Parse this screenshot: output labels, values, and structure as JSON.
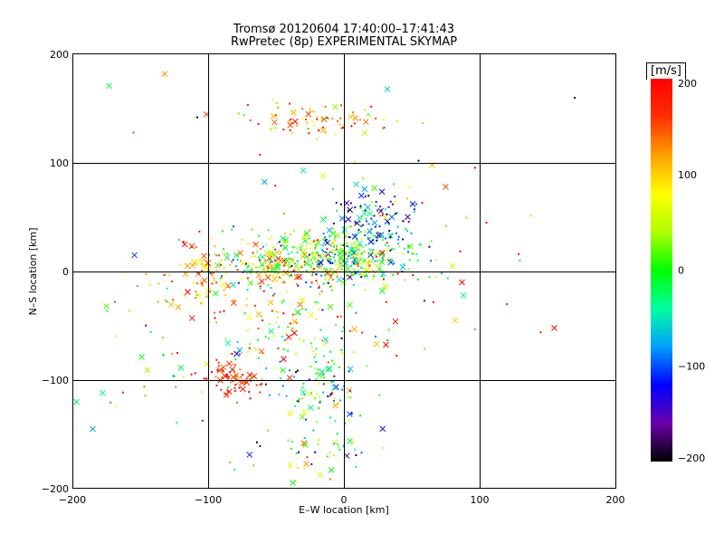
{
  "chart_data": {
    "type": "scatter",
    "title": "Tromsø 20120604 17:40:00–17:41:43",
    "subtitle": "RwPretec (8p) EXPERIMENTAL SKYMAP",
    "xlabel": "E–W location [km]",
    "ylabel": "N–S location [km]",
    "xlim": [
      -200,
      200
    ],
    "ylim": [
      -200,
      200
    ],
    "xticks": [
      -200,
      -100,
      0,
      100,
      200
    ],
    "yticks": [
      -200,
      -100,
      0,
      100,
      200
    ],
    "grid": true,
    "colorbar": {
      "label": "[m/s]",
      "range": [
        -200,
        200
      ],
      "ticks": [
        200,
        100,
        0,
        -100,
        -200
      ],
      "colors": [
        "#000000",
        "#6a00a8",
        "#0000ff",
        "#00a0ff",
        "#00ffa0",
        "#00ff00",
        "#b0ff00",
        "#ffff00",
        "#ffa000",
        "#ff3000",
        "#ff0000"
      ]
    },
    "markers": [
      "dot",
      "cross"
    ],
    "clusters": [
      {
        "x": 0,
        "y": 15,
        "sx": 25,
        "sy": 12,
        "count": 320,
        "value_mean": 10,
        "value_sd": 70
      },
      {
        "x": -55,
        "y": 5,
        "sx": 30,
        "sy": 14,
        "count": 200,
        "value_mean": 60,
        "value_sd": 90
      },
      {
        "x": -100,
        "y": -5,
        "sx": 14,
        "sy": 20,
        "count": 80,
        "value_mean": 130,
        "value_sd": 40
      },
      {
        "x": 25,
        "y": 50,
        "sx": 18,
        "sy": 14,
        "count": 100,
        "value_mean": -100,
        "value_sd": 60
      },
      {
        "x": -20,
        "y": 140,
        "sx": 30,
        "sy": 8,
        "count": 80,
        "value_mean": 110,
        "value_sd": 60
      },
      {
        "x": -80,
        "y": -100,
        "sx": 12,
        "sy": 10,
        "count": 70,
        "value_mean": 180,
        "value_sd": 30
      },
      {
        "x": -15,
        "y": -110,
        "sx": 15,
        "sy": 20,
        "count": 90,
        "value_mean": -20,
        "value_sd": 70
      },
      {
        "x": -40,
        "y": -60,
        "sx": 30,
        "sy": 30,
        "count": 140,
        "value_mean": 40,
        "value_sd": 100
      },
      {
        "x": -20,
        "y": -170,
        "sx": 25,
        "sy": 15,
        "count": 50,
        "value_mean": 0,
        "value_sd": 100
      },
      {
        "x": 20,
        "y": 20,
        "sx": 40,
        "sy": 40,
        "count": 90,
        "value_mean": 30,
        "value_sd": 120
      },
      {
        "x": -130,
        "y": -60,
        "sx": 25,
        "sy": 35,
        "count": 40,
        "value_mean": 60,
        "value_sd": 120
      }
    ],
    "outliers": [
      {
        "x": -173,
        "y": 171,
        "v": -20,
        "m": "cross"
      },
      {
        "x": -132,
        "y": 182,
        "v": 120,
        "m": "cross"
      },
      {
        "x": 32,
        "y": 168,
        "v": -60,
        "m": "cross"
      },
      {
        "x": 170,
        "y": 160,
        "v": -200,
        "m": "dot"
      },
      {
        "x": 120,
        "y": -30,
        "v": 180,
        "m": "dot"
      },
      {
        "x": 155,
        "y": -52,
        "v": 190,
        "m": "cross"
      },
      {
        "x": 145,
        "y": -56,
        "v": 180,
        "m": "dot"
      },
      {
        "x": -185,
        "y": -145,
        "v": -80,
        "m": "cross"
      },
      {
        "x": -197,
        "y": -120,
        "v": -20,
        "m": "cross"
      },
      {
        "x": 105,
        "y": 45,
        "v": 190,
        "m": "dot"
      },
      {
        "x": 75,
        "y": 78,
        "v": 150,
        "m": "cross"
      },
      {
        "x": 65,
        "y": 98,
        "v": 110,
        "m": "cross"
      },
      {
        "x": 87,
        "y": -10,
        "v": 190,
        "m": "cross"
      },
      {
        "x": 88,
        "y": -22,
        "v": -40,
        "m": "cross"
      },
      {
        "x": 82,
        "y": -45,
        "v": 100,
        "m": "cross"
      },
      {
        "x": -108,
        "y": 142,
        "v": -200,
        "m": "dot"
      },
      {
        "x": 55,
        "y": 102,
        "v": -200,
        "m": "dot"
      },
      {
        "x": -155,
        "y": 128,
        "v": 150,
        "m": "dot"
      },
      {
        "x": -175,
        "y": -32,
        "v": 20,
        "m": "cross"
      },
      {
        "x": 80,
        "y": 5,
        "v": 50,
        "m": "cross"
      }
    ]
  }
}
